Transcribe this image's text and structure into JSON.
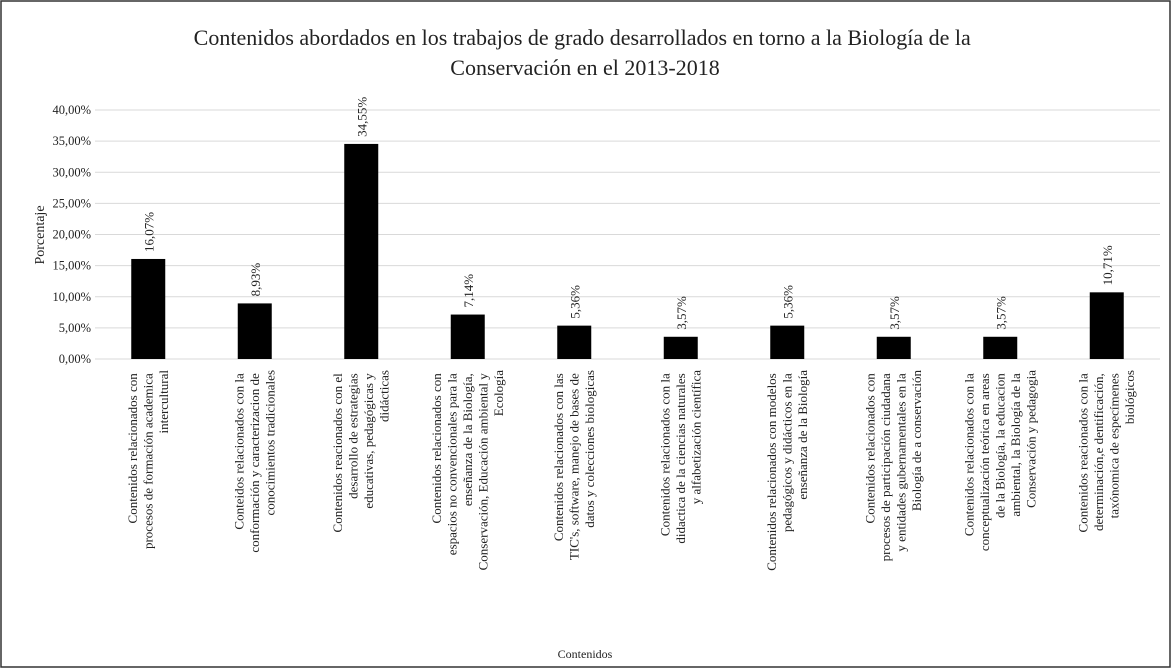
{
  "chart_data": {
    "type": "bar",
    "title": "Contenidos abordados en los trabajos de grado desarrollados en torno a la Biología de la Conservación en el 2013-2018",
    "x_label": "Contenidos",
    "y_label": "Porcentaje",
    "categories": [
      "Contenidos relacionados con procesos de formación academica intercultural",
      "Conteidos relacionados con la conformación y caracterizacion de conocimientos tradicionales",
      "Contenidos reacionados con el desarrollo de estrategias educativas, pedagógicas y didácticas",
      "Contenidos relacionados con espacios no convencionales para la enseñanza de la Biología, Conservación, Educación ambiental y Ecología",
      "Contenidos relacionados con las TIC's, software, manejo de bases de datos y colecciones biologicas",
      "Contenidos relacionados con la didactica de la ciencias naturales y alfabetización científica",
      "Contenidos relacionados con modelos pedagógicos y didácticos en la enseñanza de la Biología",
      "Contenidos relacionados con procesos de participación ciudadana y entidades gubernamentales en la Biología de a conservación",
      "Contenidos relacionados con la conceptualización teórica en areas de la Biología, la educacion ambiental, la Biología de la Conservación y pedagogia",
      "Contenidos reacionados con la determinación,e dentificación, taxónomica de especímenes biológicos"
    ],
    "values": [
      16.07,
      8.93,
      34.55,
      7.14,
      5.36,
      3.57,
      5.36,
      3.57,
      3.57,
      10.71
    ],
    "value_labels": [
      "16,07%",
      "8,93%",
      "34,55%",
      "7,14%",
      "5,36%",
      "3,57%",
      "5,36%",
      "3,57%",
      "3,57%",
      "10,71%"
    ],
    "color": "#000000",
    "ylim": [
      0,
      40
    ],
    "yticks": [
      {
        "value": 0,
        "label": "0,00%"
      },
      {
        "value": 5,
        "label": "5,00%"
      },
      {
        "value": 10,
        "label": "10,00%"
      },
      {
        "value": 15,
        "label": "15,00%"
      },
      {
        "value": 20,
        "label": "20,00%"
      },
      {
        "value": 25,
        "label": "25,00%"
      },
      {
        "value": 30,
        "label": "30,00%"
      },
      {
        "value": 35,
        "label": "35,00%"
      },
      {
        "value": 40,
        "label": "40,00%"
      }
    ],
    "grid": true
  }
}
